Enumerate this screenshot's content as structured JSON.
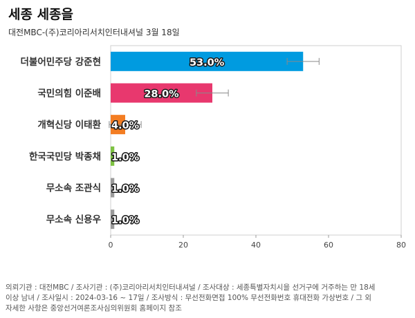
{
  "header": {
    "title": "세종 세종을",
    "subtitle": "대전MBC-(주)코리아리서치인터내셔널 3월 18일"
  },
  "chart_data": {
    "type": "bar",
    "orientation": "horizontal",
    "categories": [
      "더불어민주당 강준현",
      "국민의힘 이준배",
      "개혁신당 이태환",
      "한국국민당 박종채",
      "무소속 조관식",
      "무소속 신용우"
    ],
    "values": [
      53.0,
      28.0,
      4.0,
      1.0,
      1.0,
      1.0
    ],
    "value_labels": [
      "53.0%",
      "28.0%",
      "4.0%",
      "1.0%",
      "1.0%",
      "1.0%"
    ],
    "error_margin": [
      4.4,
      4.4,
      4.4,
      0,
      0,
      0
    ],
    "colors": [
      "#009be0",
      "#e8386e",
      "#f37d22",
      "#7dc242",
      "#9b9b9b",
      "#9b9b9b"
    ],
    "xlim": [
      0,
      80
    ],
    "xticks": [
      0,
      20,
      40,
      60,
      80
    ],
    "grid": false,
    "legend": "none"
  },
  "footnote": {
    "lines": [
      "의뢰기관 : 대전MBC / 조사기관 : (주)코리아리서치인터내셔널 / 조사대상 : 세종특별자치시을 선거구에 거주하는 만 18세",
      "이상 남녀 / 조사일시 : 2024-03-16 ~ 17일 / 조사방식 : 무선전화면접 100% 무선전화번호 휴대전화 가상번호 / 그 외",
      "자세한 사항은 중앙선거여론조사심의위원회 홈페이지 참조"
    ]
  }
}
